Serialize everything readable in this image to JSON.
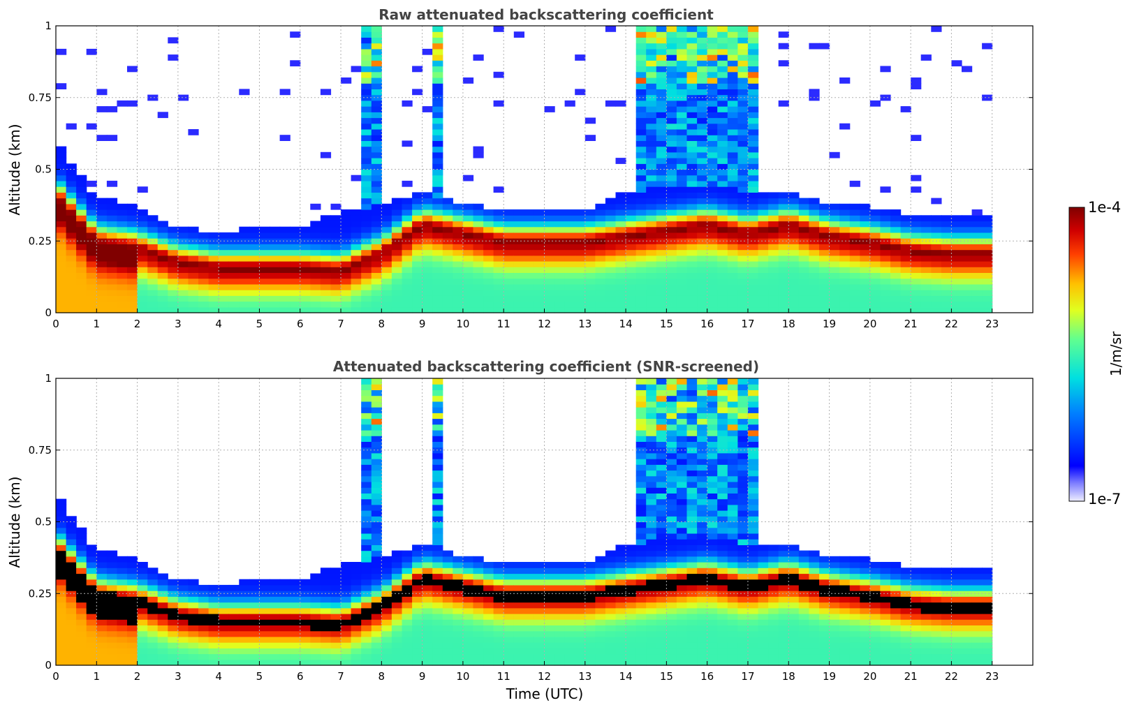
{
  "chart_data": [
    {
      "type": "heatmap",
      "title": "Raw attenuated backscattering coefficient",
      "xlabel": "",
      "ylabel": "Altitude (km)",
      "xlim": [
        0,
        24
      ],
      "ylim": [
        0,
        1
      ],
      "x_ticks": [
        0,
        1,
        2,
        3,
        4,
        5,
        6,
        7,
        8,
        9,
        10,
        11,
        12,
        13,
        14,
        15,
        16,
        17,
        18,
        19,
        20,
        21,
        22,
        23
      ],
      "y_ticks": [
        0,
        0.25,
        0.5,
        0.75,
        1
      ],
      "y_tick_labels": [
        "0",
        "0.25",
        "0.5",
        "0.75",
        "1"
      ],
      "grid": true,
      "colormap": "jet",
      "data_end_time": 23,
      "layer_top_km": [
        [
          0,
          0.6
        ],
        [
          1,
          0.4
        ],
        [
          2,
          0.38
        ],
        [
          3,
          0.3
        ],
        [
          4,
          0.28
        ],
        [
          5,
          0.3
        ],
        [
          6,
          0.3
        ],
        [
          7,
          0.35
        ],
        [
          8,
          0.38
        ],
        [
          9,
          0.42
        ],
        [
          10,
          0.38
        ],
        [
          11,
          0.36
        ],
        [
          12,
          0.35
        ],
        [
          13,
          0.36
        ],
        [
          14,
          0.42
        ],
        [
          15,
          0.44
        ],
        [
          16,
          0.45
        ],
        [
          17,
          0.42
        ],
        [
          18,
          0.42
        ],
        [
          19,
          0.38
        ],
        [
          20,
          0.37
        ],
        [
          21,
          0.34
        ],
        [
          22,
          0.34
        ],
        [
          23,
          0.34
        ]
      ],
      "peak_center_km": [
        [
          0,
          0.4
        ],
        [
          1,
          0.24
        ],
        [
          2,
          0.22
        ],
        [
          3,
          0.17
        ],
        [
          4,
          0.15
        ],
        [
          5,
          0.15
        ],
        [
          6,
          0.15
        ],
        [
          7,
          0.14
        ],
        [
          8,
          0.2
        ],
        [
          9,
          0.3
        ],
        [
          10,
          0.27
        ],
        [
          11,
          0.24
        ],
        [
          12,
          0.24
        ],
        [
          13,
          0.24
        ],
        [
          14,
          0.26
        ],
        [
          15,
          0.28
        ],
        [
          16,
          0.3
        ],
        [
          17,
          0.27
        ],
        [
          18,
          0.3
        ],
        [
          19,
          0.26
        ],
        [
          20,
          0.24
        ],
        [
          21,
          0.21
        ],
        [
          22,
          0.2
        ],
        [
          23,
          0.2
        ]
      ],
      "cloud_periods_utc": [
        [
          14.3,
          17.2
        ],
        [
          9.2,
          9.45
        ],
        [
          7.6,
          7.9
        ]
      ],
      "black_saturation": false
    },
    {
      "type": "heatmap",
      "title": "Attenuated backscattering coefficient (SNR-screened)",
      "xlabel": "Time (UTC)",
      "ylabel": "Altitude (km)",
      "xlim": [
        0,
        24
      ],
      "ylim": [
        0,
        1
      ],
      "x_ticks": [
        0,
        1,
        2,
        3,
        4,
        5,
        6,
        7,
        8,
        9,
        10,
        11,
        12,
        13,
        14,
        15,
        16,
        17,
        18,
        19,
        20,
        21,
        22,
        23
      ],
      "y_ticks": [
        0,
        0.25,
        0.5,
        0.75,
        1
      ],
      "y_tick_labels": [
        "0",
        "0.25",
        "0.5",
        "0.75",
        "1"
      ],
      "grid": true,
      "colormap": "jet",
      "data_end_time": 23,
      "black_saturation": true
    }
  ],
  "colorbar": {
    "label": "1/m/sr",
    "max_label": "1e-4",
    "min_label": "1e-7",
    "scale": "log",
    "range": [
      1e-07,
      0.0001
    ]
  }
}
